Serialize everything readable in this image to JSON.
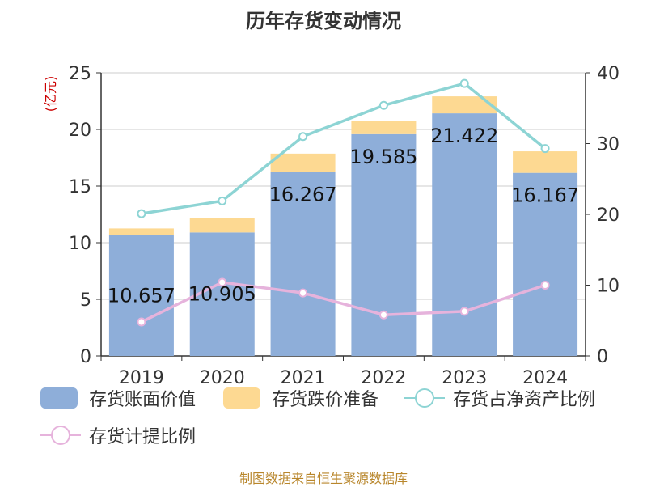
{
  "chart_data": {
    "type": "bar",
    "title": "历年存货变动情况",
    "categories": [
      "2019",
      "2020",
      "2021",
      "2022",
      "2023",
      "2024"
    ],
    "y_left_label": "(亿元)",
    "y_left_ticks": [
      "0",
      "5",
      "10",
      "15",
      "20",
      "25"
    ],
    "y_left_range": [
      0,
      25
    ],
    "y_right_ticks": [
      "0",
      "10",
      "20",
      "30",
      "40"
    ],
    "y_right_range": [
      0,
      40
    ],
    "series": [
      {
        "name": "存货账面价值",
        "kind": "bar-stack-base",
        "axis": "left",
        "color": "#8eaed9",
        "values": [
          10.657,
          10.905,
          16.267,
          19.585,
          21.422,
          16.167
        ],
        "labels": [
          "10.657",
          "10.905",
          "16.267",
          "19.585",
          "21.422",
          "16.167"
        ]
      },
      {
        "name": "存货跌价准备",
        "kind": "bar-stack-top",
        "axis": "left",
        "color": "#fdd992",
        "values": [
          0.6,
          1.3,
          1.6,
          1.2,
          1.5,
          1.9
        ]
      },
      {
        "name": "存货占净资产比例",
        "kind": "line",
        "axis": "right",
        "color": "#8dd4d4",
        "values": [
          20.1,
          21.9,
          31.0,
          35.4,
          38.5,
          29.3
        ]
      },
      {
        "name": "存货计提比例",
        "kind": "line",
        "axis": "right",
        "color": "#e6b3dc",
        "values": [
          4.8,
          10.4,
          8.9,
          5.8,
          6.3,
          10.0
        ]
      }
    ]
  },
  "source_text": "制图数据来自恒生聚源数据库"
}
